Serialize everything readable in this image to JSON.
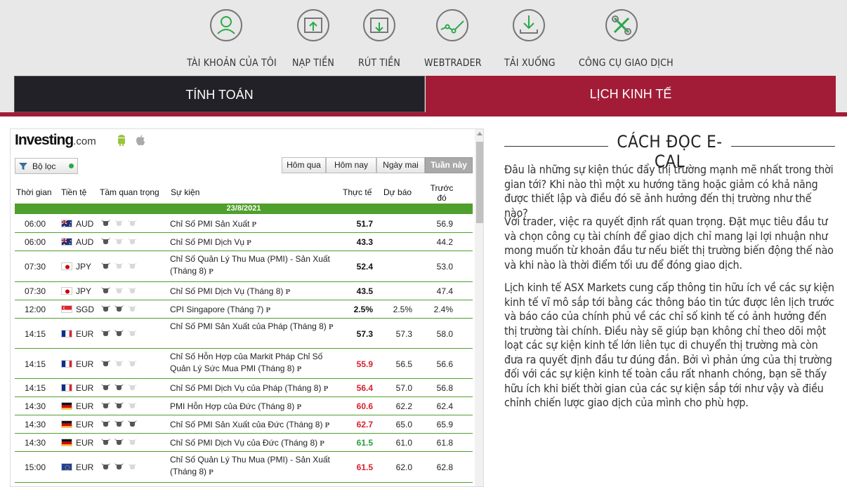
{
  "nav": [
    {
      "label": "TÀI KHOẢN CỦA TÔI",
      "icon": "user-icon"
    },
    {
      "label": "NẠP TIỀN",
      "icon": "deposit-icon"
    },
    {
      "label": "RÚT TIỀN",
      "icon": "withdraw-icon"
    },
    {
      "label": "WEBTRADER",
      "icon": "chart-line-icon"
    },
    {
      "label": "TẢI XUỐNG",
      "icon": "download-icon"
    },
    {
      "label": "CÔNG CỤ GIAO DỊCH",
      "icon": "tools-icon"
    }
  ],
  "tabs": {
    "calculator": "TÍNH TOÁN",
    "calendar": "LỊCH KINH TẾ"
  },
  "colors": {
    "accent": "#a31c37",
    "dark_tab": "#222127",
    "green": "#4f9f2c",
    "red": "#d6202f",
    "positive": "#2a9d3c"
  },
  "widget": {
    "logo_main": "Investing",
    "logo_suffix": ".com",
    "filter_label": "Bộ lọc",
    "day_buttons": [
      "Hôm qua",
      "Hôm nay",
      "Ngày mai",
      "Tuần này"
    ],
    "active_day": "Tuần này",
    "headers": {
      "time": "Thời gian",
      "currency": "Tiền tệ",
      "importance": "Tầm quan trọng",
      "event": "Sự kiện",
      "actual": "Thực tế",
      "forecast": "Dự báo",
      "previous": "Trước đó"
    },
    "date": "23/8/2021",
    "rows": [
      {
        "time": "06:00",
        "flag": "AU",
        "currency": "AUD",
        "importance": 1,
        "event": "Chỉ Số PMI Sản Xuất",
        "actual": "51.7",
        "actual_color": "black",
        "forecast": "",
        "previous": "56.9"
      },
      {
        "time": "06:00",
        "flag": "AU",
        "currency": "AUD",
        "importance": 1,
        "event": "Chỉ Số PMI Dịch Vụ",
        "actual": "43.3",
        "actual_color": "black",
        "forecast": "",
        "previous": "44.2"
      },
      {
        "time": "07:30",
        "flag": "JP",
        "currency": "JPY",
        "importance": 1,
        "event": "Chỉ Số Quản Lý Thu Mua (PMI) - Sản Xuất (Tháng 8)",
        "actual": "52.4",
        "actual_color": "black",
        "forecast": "",
        "previous": "53.0"
      },
      {
        "time": "07:30",
        "flag": "JP",
        "currency": "JPY",
        "importance": 1,
        "event": "Chỉ Số PMI Dịch Vụ (Tháng 8)",
        "actual": "43.5",
        "actual_color": "black",
        "forecast": "",
        "previous": "47.4"
      },
      {
        "time": "12:00",
        "flag": "SG",
        "currency": "SGD",
        "importance": 2,
        "event": "CPI Singapore (Tháng 7)",
        "actual": "2.5%",
        "actual_color": "black",
        "forecast": "2.5%",
        "previous": "2.4%"
      },
      {
        "time": "14:15",
        "flag": "FR",
        "currency": "EUR",
        "importance": 2,
        "event": "Chỉ Số PMI Sản Xuất của Pháp (Tháng 8)",
        "actual": "57.3",
        "actual_color": "black",
        "forecast": "57.3",
        "previous": "58.0"
      },
      {
        "time": "14:15",
        "flag": "FR",
        "currency": "EUR",
        "importance": 1,
        "event": "Chỉ Số Hỗn Hợp của Markit Pháp Chỉ Số Quản Lý Sức Mua PMI (Tháng 8)",
        "actual": "55.9",
        "actual_color": "red",
        "forecast": "56.5",
        "previous": "56.6"
      },
      {
        "time": "14:15",
        "flag": "FR",
        "currency": "EUR",
        "importance": 2,
        "event": "Chỉ Số PMI Dịch Vụ của Pháp (Tháng 8)",
        "actual": "56.4",
        "actual_color": "red",
        "forecast": "57.0",
        "previous": "56.8"
      },
      {
        "time": "14:30",
        "flag": "DE",
        "currency": "EUR",
        "importance": 2,
        "event": "PMI Hỗn Hợp của Đức (Tháng 8)",
        "actual": "60.6",
        "actual_color": "red",
        "forecast": "62.2",
        "previous": "62.4"
      },
      {
        "time": "14:30",
        "flag": "DE",
        "currency": "EUR",
        "importance": 3,
        "event": "Chỉ Số PMI Sản Xuất của Đức (Tháng 8)",
        "actual": "62.7",
        "actual_color": "red",
        "forecast": "65.0",
        "previous": "65.9"
      },
      {
        "time": "14:30",
        "flag": "DE",
        "currency": "EUR",
        "importance": 2,
        "event": "Chỉ Số PMI Dịch Vụ của Đức (Tháng 8)",
        "actual": "61.5",
        "actual_color": "green",
        "forecast": "61.0",
        "previous": "61.8"
      },
      {
        "time": "15:00",
        "flag": "EU",
        "currency": "EUR",
        "importance": 2,
        "event": "Chỉ Số Quản Lý Thu Mua (PMI) - Sản Xuất (Tháng 8)",
        "actual": "61.5",
        "actual_color": "red",
        "forecast": "62.0",
        "previous": "62.8"
      }
    ]
  },
  "guide": {
    "title": "CÁCH ĐỌC E-CAL",
    "paragraphs": [
      "Đâu là những sự kiện thúc đẩy thị trường mạnh mẽ nhất trong thời gian tới? Khi nào thì một xu hướng tăng hoặc giảm có khả năng được thiết lập và điều đó sẽ ảnh hưởng đến thị trường như thế nào?",
      "Với trader, việc ra quyết định rất quan trọng. Đặt mục tiêu đầu tư và chọn công cụ tài chính để giao dịch chỉ mang lại lợi nhuận như mong muốn từ khoản đầu tư nếu biết thị trường biến động thế nào và khi nào là thời điểm tối ưu để đóng giao dịch.",
      "Lịch kinh tế ASX Markets cung cấp thông tin hữu ích về các sự kiện kinh tế vĩ mô sắp tới bằng các thông báo tin tức được lên lịch trước và báo cáo của chính phủ về các chỉ số kinh tế có ảnh hưởng đến thị trường tài chính. Điều này sẽ giúp bạn không chỉ theo dõi một loạt các sự kiện kinh tế lớn liên tục di chuyển thị trường mà còn đưa ra quyết định đầu tư đúng đắn. Bởi vì phản ứng của thị trường đối với các sự kiện kinh tế toàn cầu rất nhanh chóng, bạn sẽ thấy hữu ích khi biết thời gian của các sự kiện sắp tới như vậy và điều chỉnh chiến lược giao dịch của mình cho phù hợp."
    ]
  }
}
